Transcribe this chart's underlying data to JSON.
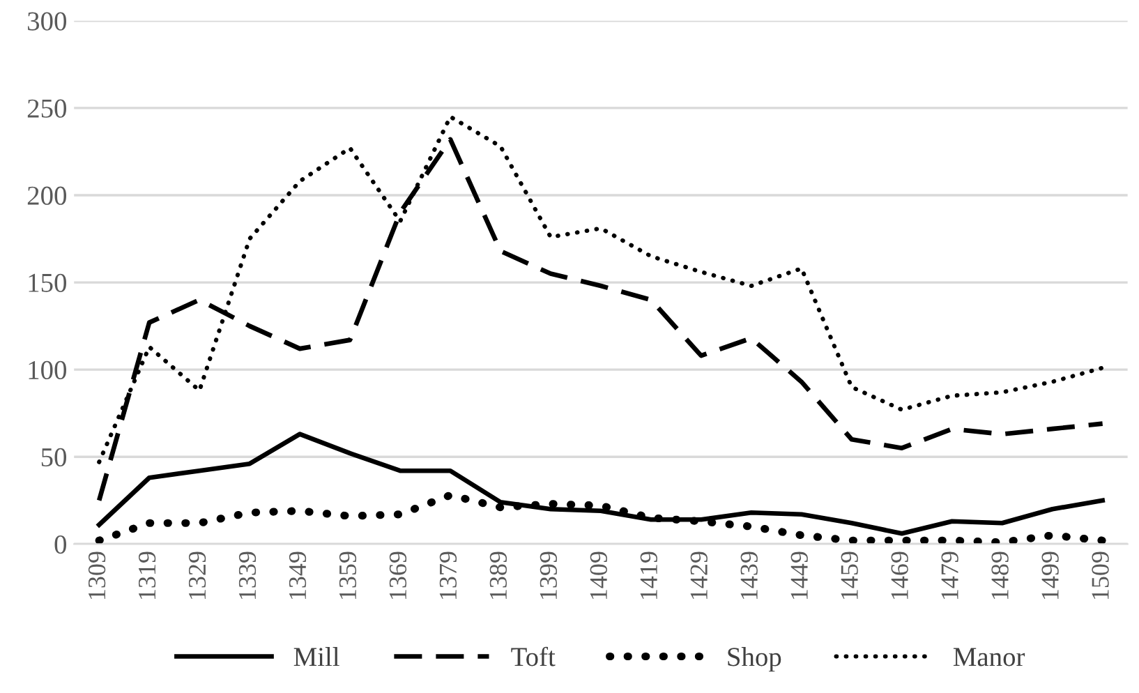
{
  "chart_data": {
    "type": "line",
    "categories": [
      "1309",
      "1319",
      "1329",
      "1339",
      "1349",
      "1359",
      "1369",
      "1379",
      "1389",
      "1399",
      "1409",
      "1419",
      "1429",
      "1439",
      "1449",
      "1459",
      "1469",
      "1479",
      "1489",
      "1499",
      "1509"
    ],
    "series": [
      {
        "name": "Mill",
        "color": "#000000",
        "line_style": "solid",
        "values": [
          11,
          38,
          42,
          46,
          63,
          52,
          42,
          42,
          24,
          20,
          19,
          14,
          14,
          18,
          17,
          12,
          6,
          13,
          12,
          20,
          25
        ]
      },
      {
        "name": "Toft",
        "color": "#000000",
        "line_style": "dashed",
        "values": [
          25,
          127,
          140,
          125,
          112,
          117,
          190,
          232,
          168,
          155,
          148,
          140,
          108,
          118,
          93,
          60,
          55,
          66,
          63,
          66,
          69
        ]
      },
      {
        "name": "Shop",
        "color": "#000000",
        "line_style": "dotted",
        "values": [
          2,
          12,
          12,
          18,
          19,
          16,
          17,
          28,
          21,
          23,
          22,
          15,
          13,
          10,
          5,
          2,
          2,
          2,
          1,
          5,
          2
        ]
      },
      {
        "name": "Manor",
        "color": "#000000",
        "line_style": "dotted",
        "values": [
          47,
          113,
          88,
          175,
          208,
          227,
          185,
          245,
          228,
          176,
          181,
          165,
          156,
          148,
          158,
          90,
          77,
          85,
          87,
          93,
          101
        ]
      }
    ],
    "ylim": [
      0,
      300
    ],
    "yticks": [
      0,
      50,
      100,
      150,
      200,
      250,
      300
    ],
    "grid": "y",
    "legend": "bottom"
  }
}
